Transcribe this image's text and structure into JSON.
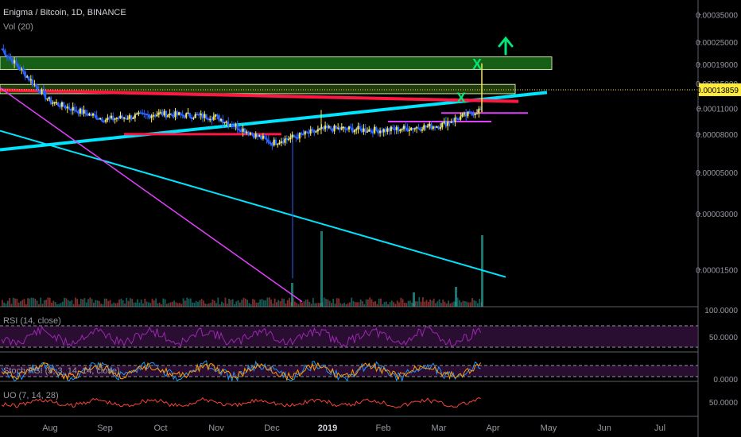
{
  "header": {
    "symbol": "Enigma / Bitcoin, 1D, BINANCE",
    "volume": "Vol (20)"
  },
  "price_axis": {
    "ticks": [
      "0.00035000",
      "0.00025000",
      "0.00019000",
      "0.00015000",
      "0.00011000",
      "0.00008000",
      "0.00005000",
      "0.00003000",
      "0.00001500"
    ],
    "last_price": "0.00013859",
    "last_price_color": "#ffeb3b"
  },
  "rsi": {
    "label": "RSI (14, close)",
    "ticks": [
      "100.0000",
      "50.0000",
      "0.0000"
    ],
    "color": "#9c27b0"
  },
  "stoch": {
    "label": "Stoch RSI (3, 3, 14, 14, close)",
    "ticks": [
      "0.0000"
    ]
  },
  "uo": {
    "label": "UO (7, 14, 28)",
    "ticks": [
      "50.0000"
    ],
    "color": "#f44336"
  },
  "time_axis": [
    "Aug",
    "Sep",
    "Oct",
    "Nov",
    "Dec",
    "2019",
    "Feb",
    "Mar",
    "Apr",
    "May",
    "Jun",
    "Jul"
  ],
  "annotations": {
    "x_mark": "X",
    "up_arrow": "up-arrow-icon"
  },
  "colors": {
    "up": "#ffeb3b",
    "down": "#2962ff",
    "trend_cyan": "#00e5ff",
    "resistance_red": "#ff1744",
    "magenta": "#e91e63",
    "zone_green": "#1b5e20",
    "annotation_green": "#00e676"
  },
  "chart_data": {
    "type": "line",
    "log_scale": true,
    "ylim": [
      9.5e-06,
      0.00042
    ],
    "x": [
      "Aug",
      "Sep",
      "Oct",
      "Nov",
      "Dec",
      "2019",
      "Feb",
      "Mar",
      "Apr"
    ],
    "series": [
      {
        "values": [
          0.00012,
          9.6e-05,
          0.000103,
          9.9e-05,
          7.2e-05,
          8.6e-05,
          8.4e-05,
          8.9e-05,
          0.000108
        ]
      }
    ],
    "events": [
      {
        "x": "Mar",
        "y": 0.00019,
        "label": "X"
      },
      {
        "x": "Mar",
        "y": 0.000125,
        "label": "X"
      }
    ],
    "zones": [
      [
        0.000178,
        0.000208
      ],
      [
        0.000132,
        0.000148
      ]
    ]
  }
}
